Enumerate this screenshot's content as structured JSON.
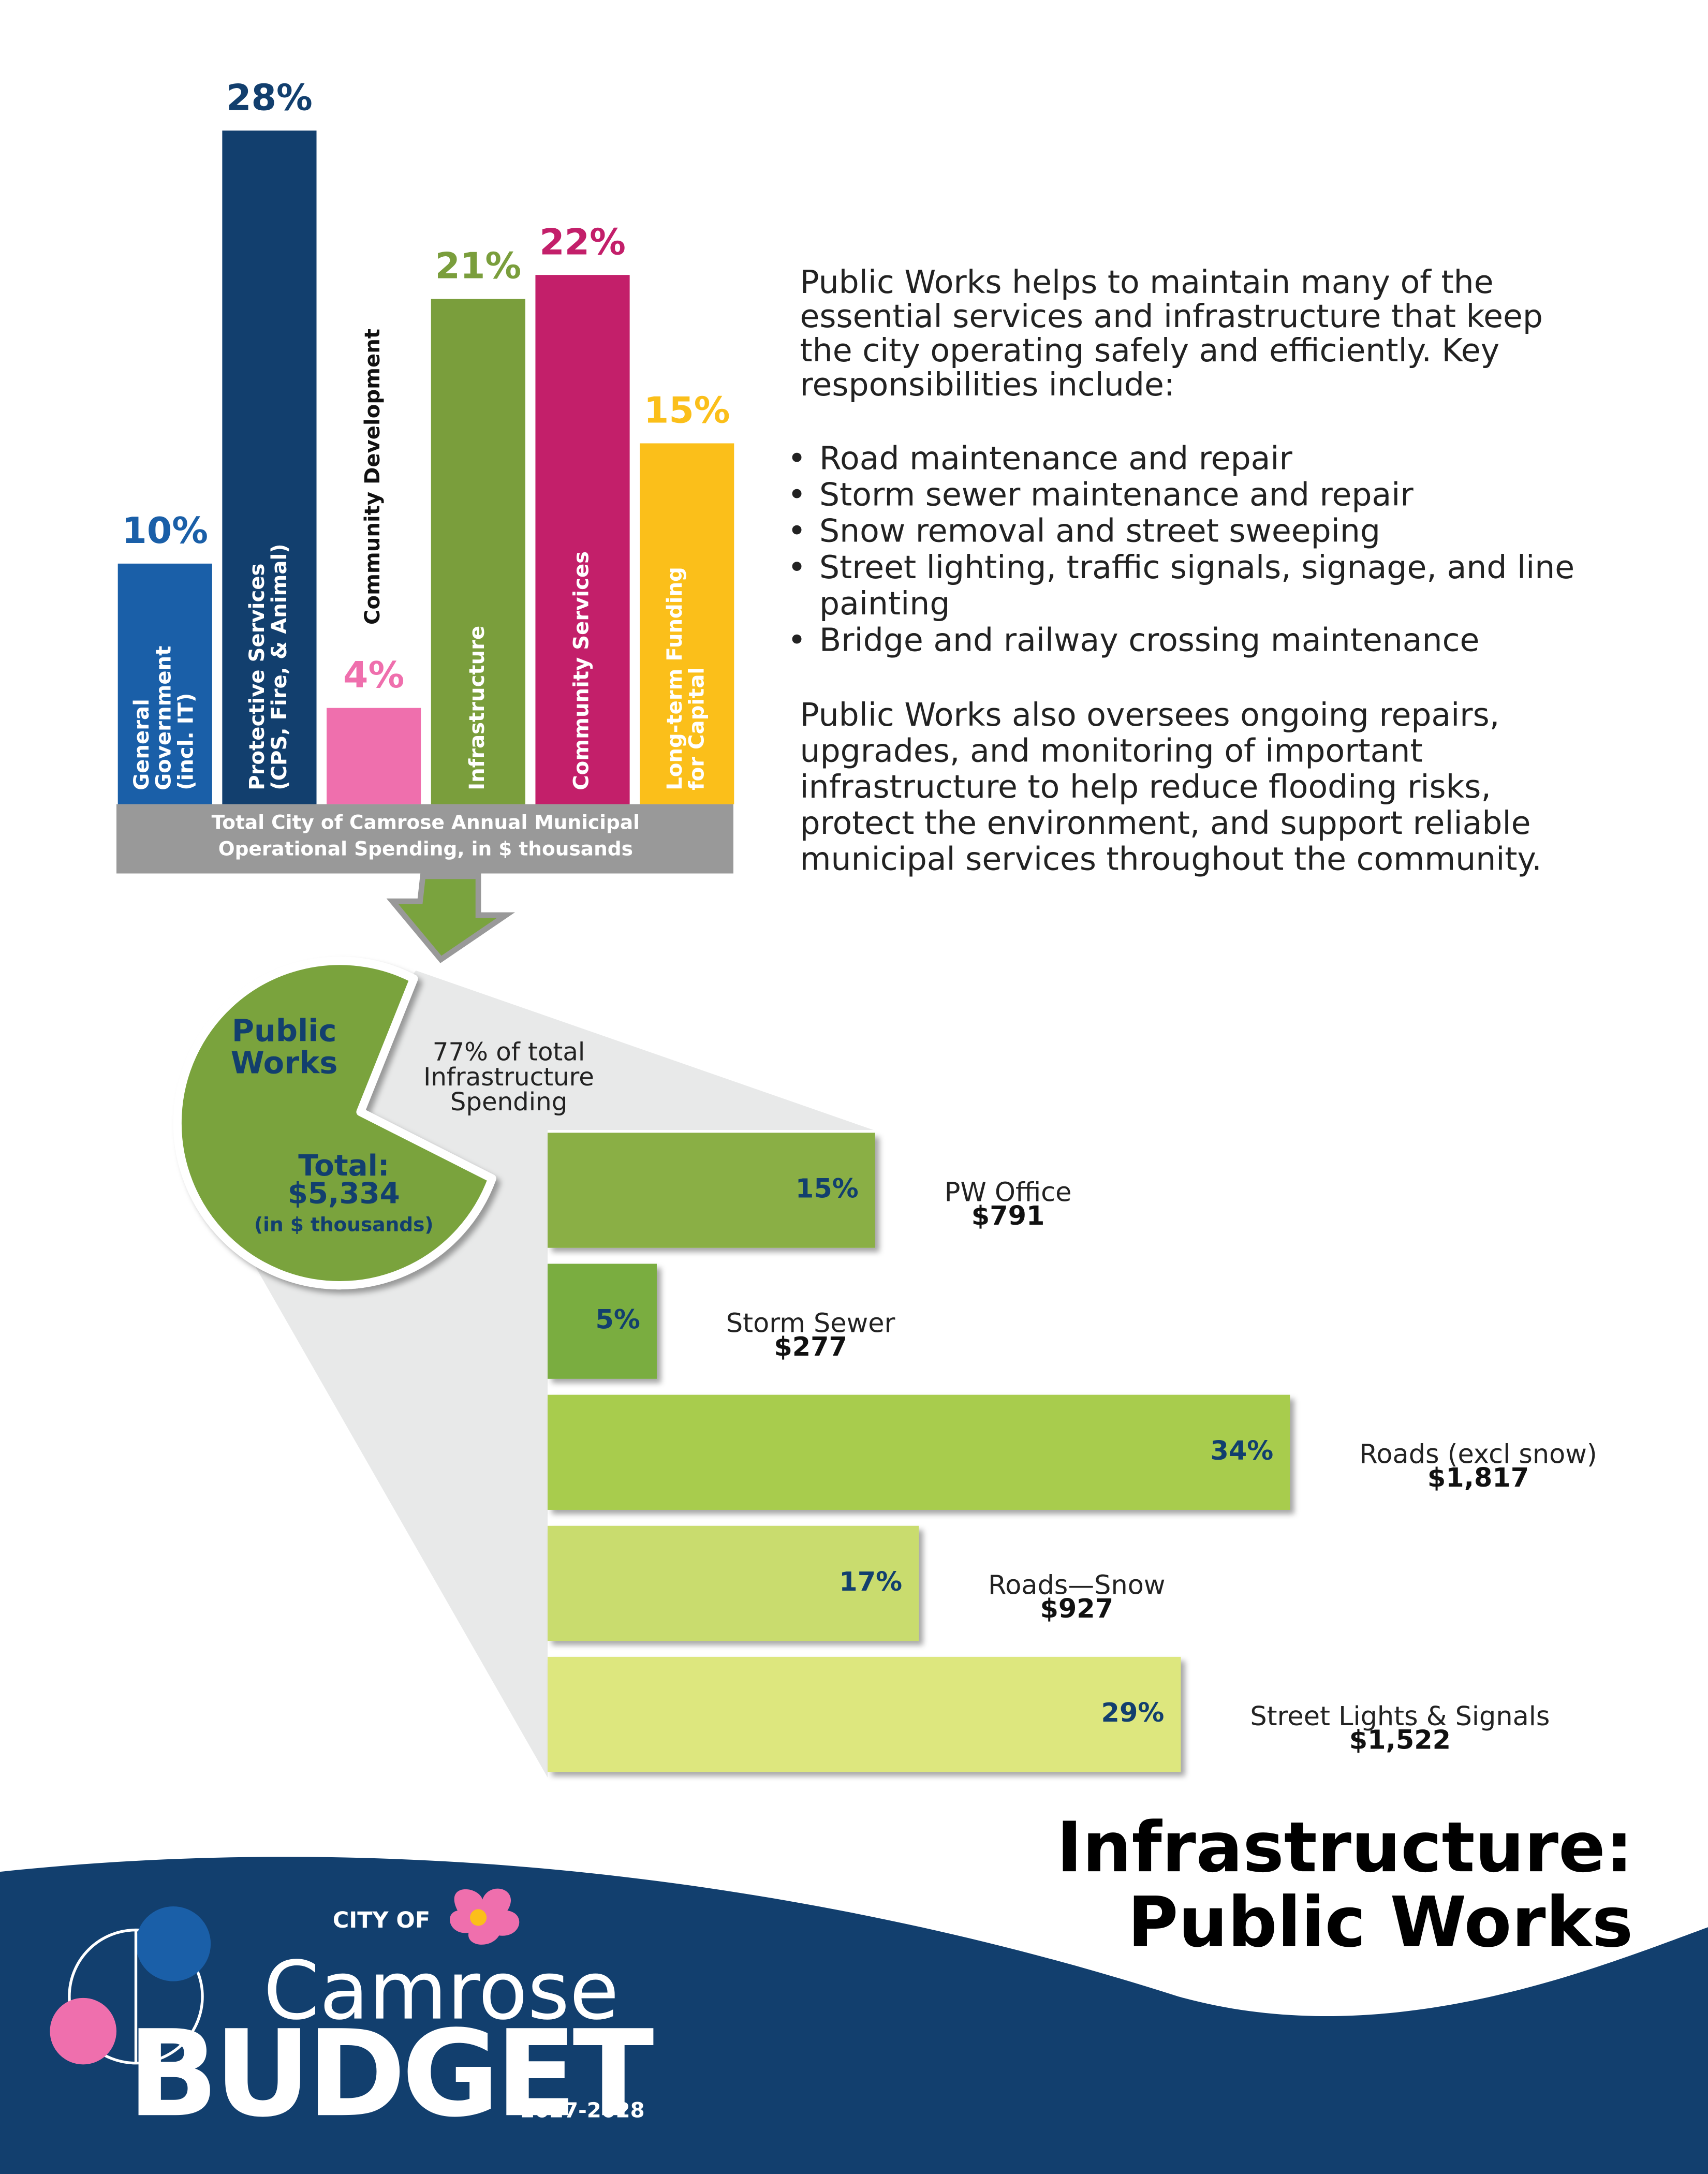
{
  "chart_data": [
    {
      "type": "bar",
      "categories": [
        [
          "General",
          "Government",
          "(incl. IT)"
        ],
        [
          "Protective Services",
          "(CPS, Fire, & Animal)"
        ],
        [
          "Community Development"
        ],
        [
          "Infrastructure"
        ],
        [
          "Community Services"
        ],
        [
          "Long-term Funding",
          "for Capital"
        ]
      ],
      "values": [
        10,
        28,
        4,
        21,
        22,
        15
      ],
      "value_labels": [
        "10%",
        "28%",
        "4%",
        "21%",
        "22%",
        "15%"
      ],
      "colors": [
        "#1a5fa8",
        "#123f6e",
        "#ef6fad",
        "#7a9e3c",
        "#c31f6a",
        "#fbbf1a"
      ],
      "x_label": [
        "Total City of Camrose Annual Municipal",
        "Operational Spending, in $ thousands"
      ]
    },
    {
      "type": "pie",
      "title": [
        "Public",
        "Works"
      ],
      "values": [
        77
      ],
      "value_labels": [
        [
          "77% of total",
          "Infrastructure",
          "Spending"
        ]
      ],
      "total_label": [
        "Total:",
        "$5,334",
        "(in $ thousands)"
      ],
      "color": "#7aa33e"
    },
    {
      "type": "hbar",
      "categories": [
        "PW Office",
        "Storm Sewer",
        "Roads (excl snow)",
        "Roads—Snow",
        "Street Lights & Signals"
      ],
      "values": [
        15,
        5,
        34,
        17,
        29
      ],
      "value_labels": [
        "15%",
        "5%",
        "34%",
        "17%",
        "29%"
      ],
      "amounts": [
        "$791",
        "$277",
        "$1,817",
        "$927",
        "$1,522"
      ],
      "colors": [
        "#8aaf45",
        "#7aad3f",
        "#a8cc4d",
        "#c9dc6e",
        "#dde77e"
      ]
    }
  ],
  "text": {
    "intro": [
      "Public Works helps to maintain many of the",
      "essential services and infrastructure that keep",
      "the city operating safely and efficiently. Key",
      "responsibilities include:"
    ],
    "bullets": [
      [
        "Road maintenance and repair"
      ],
      [
        "Storm sewer maintenance and repair"
      ],
      [
        "Snow removal and street sweeping"
      ],
      [
        "Street lighting, traffic signals, signage, and line",
        "painting"
      ],
      [
        "Bridge and railway crossing maintenance"
      ]
    ],
    "outro": [
      "Public Works also oversees ongoing repairs,",
      "upgrades, and monitoring of important",
      "infrastructure to help reduce flooding risks,",
      "protect the environment, and support reliable",
      "municipal services throughout the community."
    ]
  },
  "title": [
    "Infrastructure:",
    "Public Works"
  ],
  "logo": {
    "city": "CITY OF",
    "name": "Camrose",
    "budget": "BUDGET",
    "years": "2027-2028"
  }
}
